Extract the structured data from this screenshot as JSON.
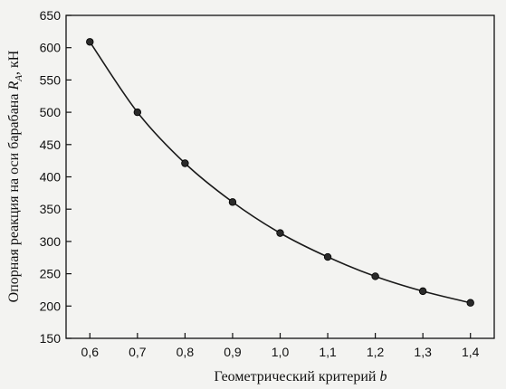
{
  "chart_data": {
    "type": "line",
    "xlabel": "Геометрический критерий",
    "xlabel_var": "b",
    "ylabel": "Опорная реакция на оси барабана",
    "ylabel_var": "R",
    "ylabel_sub": "A",
    "ylabel_unit": ", кН",
    "xlim": [
      0.55,
      1.45
    ],
    "ylim": [
      150,
      650
    ],
    "x_ticks": [
      0.6,
      0.7,
      0.8,
      0.9,
      1.0,
      1.1,
      1.2,
      1.3,
      1.4
    ],
    "x_tick_labels": [
      "0,6",
      "0,7",
      "0,8",
      "0,9",
      "1,0",
      "1,1",
      "1,2",
      "1,3",
      "1,4"
    ],
    "y_ticks": [
      150,
      200,
      250,
      300,
      350,
      400,
      450,
      500,
      550,
      600,
      650
    ],
    "y_tick_labels": [
      "150",
      "200",
      "250",
      "300",
      "350",
      "400",
      "450",
      "500",
      "550",
      "600",
      "650"
    ],
    "grid": false,
    "series": [
      {
        "x": [
          0.6,
          0.7,
          0.8,
          0.9,
          1.0,
          1.1,
          1.2,
          1.3,
          1.4
        ],
        "y": [
          609,
          500,
          421,
          361,
          313,
          276,
          246,
          223,
          205
        ]
      }
    ],
    "colors": {
      "line": "#1a1a1a",
      "marker": "#2a2a2a",
      "axis": "#111111"
    }
  }
}
